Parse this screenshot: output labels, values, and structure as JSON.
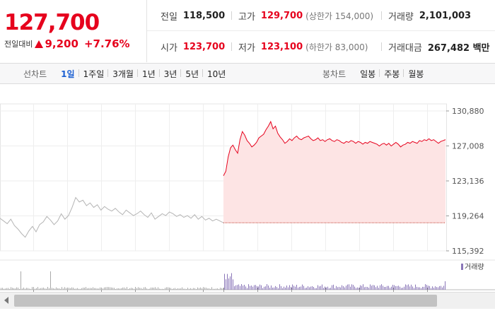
{
  "quote": {
    "current_price": "127,700",
    "change_label": "전일대비",
    "change_value": "9,200",
    "change_percent": "+7.76%"
  },
  "stats": {
    "prev_close": {
      "label": "전일",
      "value": "118,500"
    },
    "high": {
      "label": "고가",
      "value": "129,700",
      "sub": "(상한가 154,000)"
    },
    "volume": {
      "label": "거래량",
      "value": "2,101,003"
    },
    "open": {
      "label": "시가",
      "value": "123,700"
    },
    "low": {
      "label": "저가",
      "value": "123,100",
      "sub": "(하한가 83,000)"
    },
    "amount": {
      "label": "거래대금",
      "value": "267,482 백만"
    }
  },
  "tabs": {
    "line_label": "선차트",
    "line_tabs": [
      "1일",
      "1주일",
      "3개월",
      "1년",
      "3년",
      "5년",
      "10년"
    ],
    "active_line_tab": "1일",
    "candle_label": "봉차트",
    "candle_tabs": [
      "일봉",
      "주봉",
      "월봉"
    ]
  },
  "colors": {
    "up": "#e6021d",
    "prev_day_line": "#b4b4b4",
    "area_fill": "#fde4e4",
    "volume_bar": "#8a76b8"
  },
  "chart_data": {
    "type": "line",
    "ylim": [
      115392,
      130880
    ],
    "y_ticks": [
      "130,880",
      "127,008",
      "123,136",
      "119,264",
      "115,392"
    ],
    "baseline": 118500,
    "volume_legend": "거래량",
    "series": [
      {
        "values": [
          119000,
          118700,
          118400,
          118900,
          118200,
          117800,
          117300,
          116900,
          117600,
          118100,
          117500,
          118300,
          118600,
          119200,
          118800,
          118300,
          118700,
          119500,
          118900,
          119300,
          120200,
          121300,
          120800,
          121000,
          120400,
          120700,
          120200,
          120500,
          119900,
          120300,
          120000,
          119800,
          120100,
          119700,
          119400,
          119900,
          119600,
          119300,
          119500,
          119800,
          119400,
          119100,
          119600,
          118900,
          119200,
          119500,
          119300,
          119700,
          119500,
          119200,
          119400,
          119100,
          119300,
          119000,
          119400,
          118900,
          119200,
          118800,
          119000,
          118700,
          118900,
          118700,
          118500
        ]
      },
      {
        "values": [
          123700,
          124200,
          125800,
          126800,
          127100,
          126600,
          126200,
          127700,
          128600,
          128200,
          127600,
          127300,
          126900,
          127100,
          127400,
          127900,
          128100,
          128300,
          128800,
          129200,
          129700,
          128900,
          129200,
          128400,
          128000,
          127700,
          127300,
          127500,
          127800,
          127600,
          127900,
          128100,
          127800,
          127700,
          127900,
          128000,
          128100,
          127800,
          127600,
          127700,
          127900,
          127600,
          127700,
          127500,
          127700,
          127800,
          127600,
          127500,
          127700,
          127600,
          127400,
          127300,
          127500,
          127400,
          127600,
          127500,
          127300,
          127500,
          127400,
          127200,
          127400,
          127300,
          127500,
          127400,
          127300,
          127200,
          127000,
          127200,
          127300,
          127100,
          127300,
          127000,
          127200,
          127400,
          127200,
          126900,
          127100,
          127200,
          127400,
          127300,
          127500,
          127400,
          127300,
          127600,
          127500,
          127700,
          127600,
          127800,
          127600,
          127700,
          127500,
          127300,
          127500,
          127600,
          127700
        ]
      }
    ]
  }
}
